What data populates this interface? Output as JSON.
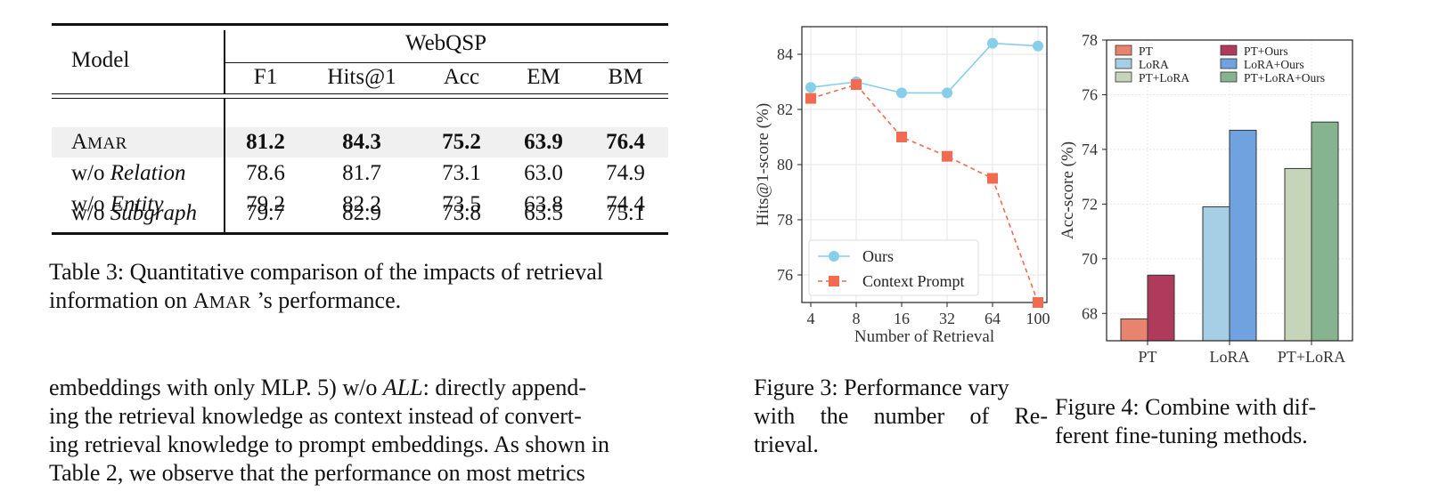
{
  "table": {
    "model_header": "Model",
    "group_header": "WebQSP",
    "columns": [
      "F1",
      "Hits@1",
      "Acc",
      "EM",
      "BM"
    ],
    "rows": [
      {
        "model_first": "A",
        "model_rest": "MAR",
        "model_plain": "",
        "model_italic": "",
        "values": [
          "81.2",
          "84.3",
          "75.2",
          "63.9",
          "76.4"
        ],
        "bold": true
      },
      {
        "model_first": "",
        "model_rest": "",
        "model_plain": "w/o ",
        "model_italic": "Relation",
        "values": [
          "78.6",
          "81.7",
          "73.1",
          "63.0",
          "74.9"
        ],
        "bold": false
      },
      {
        "model_first": "",
        "model_rest": "",
        "model_plain": "w/o ",
        "model_italic": "Entity",
        "values": [
          "79.2",
          "82.2",
          "73.5",
          "63.8",
          "74.4"
        ],
        "bold": false
      },
      {
        "model_first": "",
        "model_rest": "",
        "model_plain": "w/o ",
        "model_italic": "Subgraph",
        "values": [
          "79.7",
          "82.9",
          "73.8",
          "63.5",
          "75.1"
        ],
        "bold": false
      }
    ]
  },
  "table_caption": {
    "line1": "Table 3: Quantitative comparison of the impacts of retrieval",
    "line2_pre": "information on ",
    "line2_sc_first": "A",
    "line2_sc_rest": "MAR",
    "line2_post": " ’s performance."
  },
  "body": {
    "line1_pre": "embeddings with only MLP. 5) w/o ",
    "line1_italic": "ALL",
    "line1_post": ": directly append-",
    "line2": "ing the retrieval knowledge as context instead of convert-",
    "line3": "ing retrieval knowledge to prompt embeddings. As shown in",
    "line4": "Table 2, we observe that the performance on most metrics"
  },
  "figure3_caption": {
    "line1": "Figure 3: Performance vary",
    "line2": "with the number of Re-",
    "line3": "trieval."
  },
  "figure4_caption": {
    "line1": "Figure 4: Combine with dif-",
    "line2": "ferent fine-tuning methods."
  },
  "chart_data": [
    {
      "type": "line",
      "title": "",
      "xlabel": "Number of Retrieval",
      "ylabel": "Hits@1-score (%)",
      "categories": [
        "4",
        "8",
        "16",
        "32",
        "64",
        "100"
      ],
      "ylim": [
        75,
        85
      ],
      "yticks": [
        "76",
        "78",
        "80",
        "82",
        "84"
      ],
      "grid": true,
      "legend_position": "bottom-left",
      "series": [
        {
          "name": "Ours",
          "color": "#87ceeb",
          "marker": "circle",
          "line_style": "solid",
          "values": [
            82.8,
            83.0,
            82.6,
            82.6,
            84.4,
            84.3
          ]
        },
        {
          "name": "Context Prompt",
          "color": "#f26a4f",
          "marker": "square",
          "line_style": "dashed",
          "values": [
            82.4,
            82.9,
            81.0,
            80.3,
            79.5,
            75.0
          ]
        }
      ]
    },
    {
      "type": "bar",
      "title": "",
      "xlabel": "",
      "ylabel": "Acc-score (%)",
      "categories": [
        "PT",
        "LoRA",
        "PT+LoRA"
      ],
      "ylim": [
        67,
        78
      ],
      "yticks": [
        "68",
        "70",
        "72",
        "74",
        "76",
        "78"
      ],
      "grid": true,
      "legend_position": "top",
      "series": [
        {
          "name": "PT",
          "color": "#e8836f",
          "category": "PT",
          "value": 67.8
        },
        {
          "name": "PT+Ours",
          "color": "#b03a5b",
          "category": "PT",
          "value": 69.4
        },
        {
          "name": "LoRA",
          "color": "#a6cfe6",
          "category": "LoRA",
          "value": 71.9
        },
        {
          "name": "LoRA+Ours",
          "color": "#6fa2de",
          "category": "LoRA",
          "value": 74.7
        },
        {
          "name": "PT+LoRA",
          "color": "#c6d4b9",
          "category": "PT+LoRA",
          "value": 73.3
        },
        {
          "name": "PT+LoRA+Ours",
          "color": "#85b48f",
          "category": "PT+LoRA",
          "value": 75.0
        }
      ]
    }
  ]
}
